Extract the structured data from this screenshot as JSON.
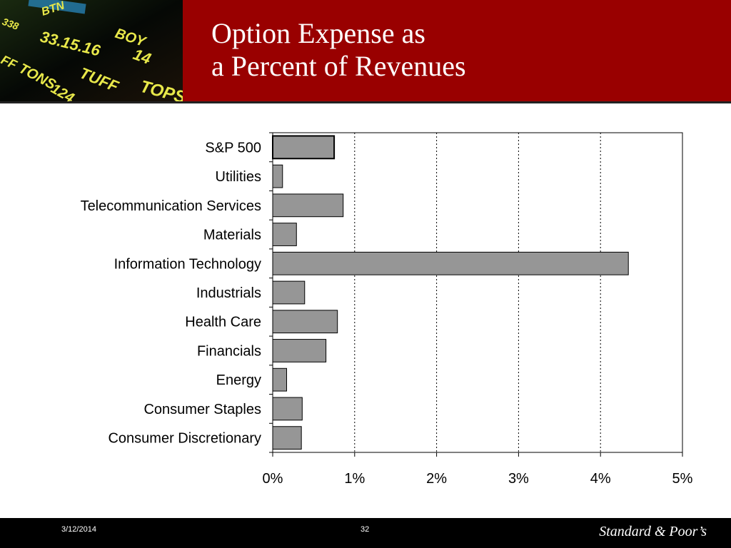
{
  "slide": {
    "title_line1": "Option Expense as",
    "title_line2": "a Percent of Revenues",
    "header_color": "#990000",
    "footer": {
      "date": "3/12/2014",
      "page": "32",
      "brand": "Standard & Poor’s"
    }
  },
  "ticker_image": {
    "texts": [
      "BTN",
      "338",
      "33.15.16",
      "BOY",
      "14",
      "FF",
      "TONS",
      "TUFF",
      "124",
      "TOPS"
    ]
  },
  "chart_data": {
    "type": "bar",
    "orientation": "horizontal",
    "categories": [
      "S&P 500",
      "Utilities",
      "Telecommunication Services",
      "Materials",
      "Information Technology",
      "Industrials",
      "Health Care",
      "Financials",
      "Energy",
      "Consumer Staples",
      "Consumer Discretionary"
    ],
    "values": [
      0.75,
      0.12,
      0.86,
      0.29,
      4.34,
      0.39,
      0.79,
      0.65,
      0.17,
      0.36,
      0.35
    ],
    "highlight_index": 0,
    "xlim": [
      0,
      5
    ],
    "xticks": [
      0,
      1,
      2,
      3,
      4,
      5
    ],
    "xtick_labels": [
      "0%",
      "1%",
      "2%",
      "3%",
      "4%",
      "5%"
    ],
    "grid": "vertical dotted",
    "bar_color": "#969696",
    "title": "",
    "xlabel": "",
    "ylabel": ""
  }
}
